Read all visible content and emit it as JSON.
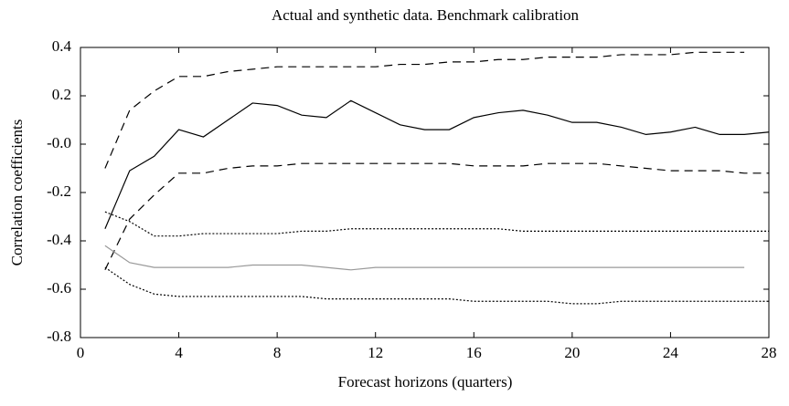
{
  "chart_data": {
    "type": "line",
    "title": "Actual and synthetic data. Benchmark calibration",
    "x_label": "Forecast horizons (quarters)",
    "y_label": "Correlation coefficients",
    "x": [
      1,
      2,
      3,
      4,
      5,
      6,
      7,
      8,
      9,
      10,
      11,
      12,
      13,
      14,
      15,
      16,
      17,
      18,
      19,
      20,
      21,
      22,
      23,
      24,
      25,
      26,
      27,
      28
    ],
    "series": [
      {
        "color": "#000000",
        "dash": "none",
        "values": [
          -0.35,
          -0.11,
          -0.05,
          0.06,
          0.03,
          0.1,
          0.17,
          0.16,
          0.12,
          0.11,
          0.18,
          0.13,
          0.08,
          0.06,
          0.06,
          0.11,
          0.13,
          0.14,
          0.12,
          0.09,
          0.09,
          0.07,
          0.04,
          0.05,
          0.07,
          0.04,
          0.04,
          0.05
        ]
      },
      {
        "color": "#000000",
        "dash": "9,6",
        "values": [
          -0.1,
          0.14,
          0.22,
          0.28,
          0.28,
          0.3,
          0.31,
          0.32,
          0.32,
          0.32,
          0.32,
          0.32,
          0.33,
          0.33,
          0.34,
          0.34,
          0.35,
          0.35,
          0.36,
          0.36,
          0.36,
          0.37,
          0.37,
          0.37,
          0.38,
          0.38,
          0.38,
          null
        ]
      },
      {
        "color": "#000000",
        "dash": "9,6",
        "values": [
          -0.52,
          -0.31,
          -0.21,
          -0.12,
          -0.12,
          -0.1,
          -0.09,
          -0.09,
          -0.08,
          -0.08,
          -0.08,
          -0.08,
          -0.08,
          -0.08,
          -0.08,
          -0.09,
          -0.09,
          -0.09,
          -0.08,
          -0.08,
          -0.08,
          -0.09,
          -0.1,
          -0.11,
          -0.11,
          -0.11,
          -0.12,
          -0.12
        ]
      },
      {
        "color": "#000000",
        "dash": "2,2",
        "values": [
          -0.28,
          -0.32,
          -0.38,
          -0.38,
          -0.37,
          -0.37,
          -0.37,
          -0.37,
          -0.36,
          -0.36,
          -0.35,
          -0.35,
          -0.35,
          -0.35,
          -0.35,
          -0.35,
          -0.35,
          -0.36,
          -0.36,
          -0.36,
          -0.36,
          -0.36,
          -0.36,
          -0.36,
          -0.36,
          -0.36,
          -0.36,
          -0.36
        ]
      },
      {
        "color": "#999999",
        "dash": "none",
        "values": [
          -0.42,
          -0.49,
          -0.51,
          -0.51,
          -0.51,
          -0.51,
          -0.5,
          -0.5,
          -0.5,
          -0.51,
          -0.52,
          -0.51,
          -0.51,
          -0.51,
          -0.51,
          -0.51,
          -0.51,
          -0.51,
          -0.51,
          -0.51,
          -0.51,
          -0.51,
          -0.51,
          -0.51,
          -0.51,
          -0.51,
          -0.51,
          null
        ]
      },
      {
        "color": "#000000",
        "dash": "2,2",
        "values": [
          -0.51,
          -0.58,
          -0.62,
          -0.63,
          -0.63,
          -0.63,
          -0.63,
          -0.63,
          -0.63,
          -0.64,
          -0.64,
          -0.64,
          -0.64,
          -0.64,
          -0.64,
          -0.65,
          -0.65,
          -0.65,
          -0.65,
          -0.66,
          -0.66,
          -0.65,
          -0.65,
          -0.65,
          -0.65,
          -0.65,
          -0.65,
          -0.65
        ]
      }
    ],
    "xlim": [
      0,
      28
    ],
    "xticks": [
      0,
      4,
      8,
      12,
      16,
      20,
      24,
      28
    ],
    "ylim": [
      -0.8,
      0.4
    ],
    "yticks": [
      -0.8,
      -0.6,
      -0.4,
      -0.2,
      {
        "value": 0,
        "label": "-0.0"
      },
      0.2,
      0.4
    ]
  }
}
